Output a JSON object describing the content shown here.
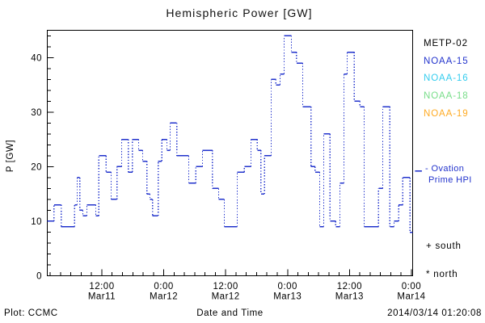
{
  "title": "Hemispheric Power [GW]",
  "footer": {
    "left": "Plot: CCMC",
    "timestamp": "2014/03/14 01:20:08"
  },
  "axes": {
    "y_label": "P [GW]",
    "x_label": "Date and Time",
    "y_ticks": [
      0,
      10,
      20,
      30,
      40
    ],
    "y_minor_step": 2,
    "y_max": 45,
    "x_minor_step_hours": 2,
    "x_ticks": [
      {
        "t": 10.57,
        "time": "12:00",
        "date": "Mar11"
      },
      {
        "t": 22.57,
        "time": "0:00",
        "date": "Mar12"
      },
      {
        "t": 34.57,
        "time": "12:00",
        "date": "Mar12"
      },
      {
        "t": 46.57,
        "time": "0:00",
        "date": "Mar13"
      },
      {
        "t": 58.57,
        "time": "12:00",
        "date": "Mar13"
      },
      {
        "t": 70.57,
        "time": "0:00",
        "date": "Mar14"
      }
    ]
  },
  "legend": {
    "satellites": [
      {
        "label": "METP-02",
        "color": "#000000"
      },
      {
        "label": "NOAA-15",
        "color": "#2233cc"
      },
      {
        "label": "NOAA-16",
        "color": "#33ccee"
      },
      {
        "label": "NOAA-18",
        "color": "#77dd88"
      },
      {
        "label": "NOAA-19",
        "color": "#ffaa22"
      }
    ],
    "ovation": {
      "line1": "- Ovation",
      "line2": "Prime HPI",
      "color": "#2233cc",
      "marker_gw": 19.2
    },
    "south": "+ south",
    "north": "* north"
  },
  "chart_data": {
    "type": "line",
    "style": "step",
    "title": "Hemispheric Power [GW]",
    "xlabel": "Date and Time",
    "ylabel": "P [GW]",
    "ylim": [
      0,
      45
    ],
    "x_window_hours": 70.8,
    "x_window_note": "hours since ~2014/03/11 01:25 UT; window ends 2014/03/14 ~01:20 UT",
    "grid": false,
    "legend_position": "right-outside",
    "series": [
      {
        "name": "Ovation Prime HPI",
        "color": "#2233cc",
        "t_hours": [
          0.0,
          1.3,
          2.7,
          5.3,
          5.8,
          6.3,
          6.9,
          7.7,
          9.4,
          10.0,
          11.4,
          12.4,
          13.5,
          14.4,
          15.7,
          16.5,
          17.7,
          18.5,
          19.3,
          19.9,
          20.4,
          21.5,
          22.2,
          23.2,
          23.8,
          25.1,
          27.4,
          28.8,
          30.1,
          32.0,
          33.2,
          34.3,
          36.8,
          38.2,
          39.5,
          40.7,
          41.4,
          42.1,
          43.4,
          44.3,
          45.1,
          45.9,
          47.3,
          48.3,
          49.5,
          51.1,
          51.9,
          52.8,
          53.6,
          54.8,
          55.9,
          56.7,
          57.5,
          58.1,
          59.5,
          60.6,
          61.4,
          64.2,
          65.0,
          66.4,
          67.2,
          68.1,
          68.9,
          70.3
        ],
        "values_gw": [
          10,
          13,
          9,
          13,
          18,
          12,
          11,
          13,
          11,
          22,
          19,
          14,
          20,
          25,
          19,
          25,
          23,
          21,
          15,
          14,
          11,
          21,
          25,
          23,
          28,
          22,
          17,
          20,
          23,
          16,
          14,
          9,
          19,
          20,
          25,
          23,
          15,
          22,
          36,
          35,
          37,
          44,
          41,
          39,
          31,
          20,
          19,
          9,
          26,
          10,
          9,
          17,
          37,
          41,
          32,
          31,
          9,
          16,
          31,
          9,
          10,
          13,
          18,
          8
        ]
      }
    ]
  }
}
